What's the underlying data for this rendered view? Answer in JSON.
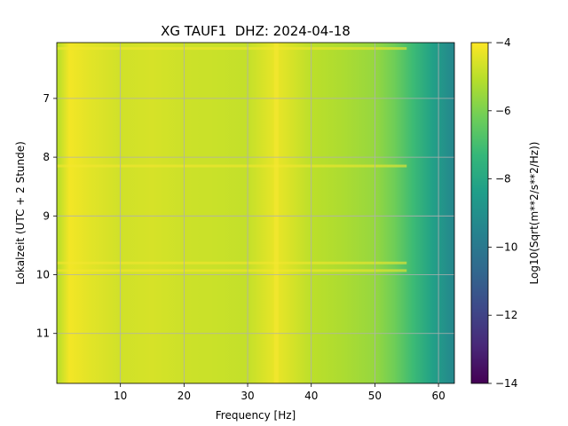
{
  "chart_data": {
    "type": "heatmap",
    "title": "XG TAUF1  DHZ: 2024-04-18",
    "xlabel": "Frequency [Hz]",
    "ylabel": "Lokalzeit (UTC + 2 Stunde)",
    "colorbar_label": "Log10(Sqrt(m**2/s**2/Hz))",
    "x_range": [
      0,
      62.5
    ],
    "y_range": [
      6.05,
      11.85
    ],
    "y_inverted": true,
    "x_ticks": [
      10,
      20,
      30,
      40,
      50,
      60
    ],
    "y_ticks": [
      7,
      8,
      9,
      10,
      11
    ],
    "color_range": [
      -14,
      -4
    ],
    "colorbar_ticks": [
      -4,
      -6,
      -8,
      -10,
      -12,
      -14
    ],
    "colorbar_tick_labels": [
      "−4",
      "−6",
      "−8",
      "−10",
      "−12",
      "−14"
    ],
    "colormap": "viridis",
    "grid": true,
    "spectrum_profile": [
      {
        "freq": 0.3,
        "value": -5.0
      },
      {
        "freq": 2,
        "value": -4.15
      },
      {
        "freq": 5,
        "value": -4.4
      },
      {
        "freq": 10,
        "value": -4.7
      },
      {
        "freq": 15,
        "value": -4.6
      },
      {
        "freq": 20,
        "value": -4.75
      },
      {
        "freq": 25,
        "value": -4.8
      },
      {
        "freq": 30,
        "value": -4.9
      },
      {
        "freq": 34.5,
        "value": -4.3
      },
      {
        "freq": 40,
        "value": -5.0
      },
      {
        "freq": 45,
        "value": -5.25
      },
      {
        "freq": 50,
        "value": -5.6
      },
      {
        "freq": 53,
        "value": -6.2
      },
      {
        "freq": 56,
        "value": -7.2
      },
      {
        "freq": 59,
        "value": -8.3
      },
      {
        "freq": 62.5,
        "value": -9.4
      }
    ],
    "bright_bands_time": [
      6.15,
      8.15,
      9.8,
      9.93
    ],
    "bright_lines_freq": [
      34.5
    ]
  }
}
